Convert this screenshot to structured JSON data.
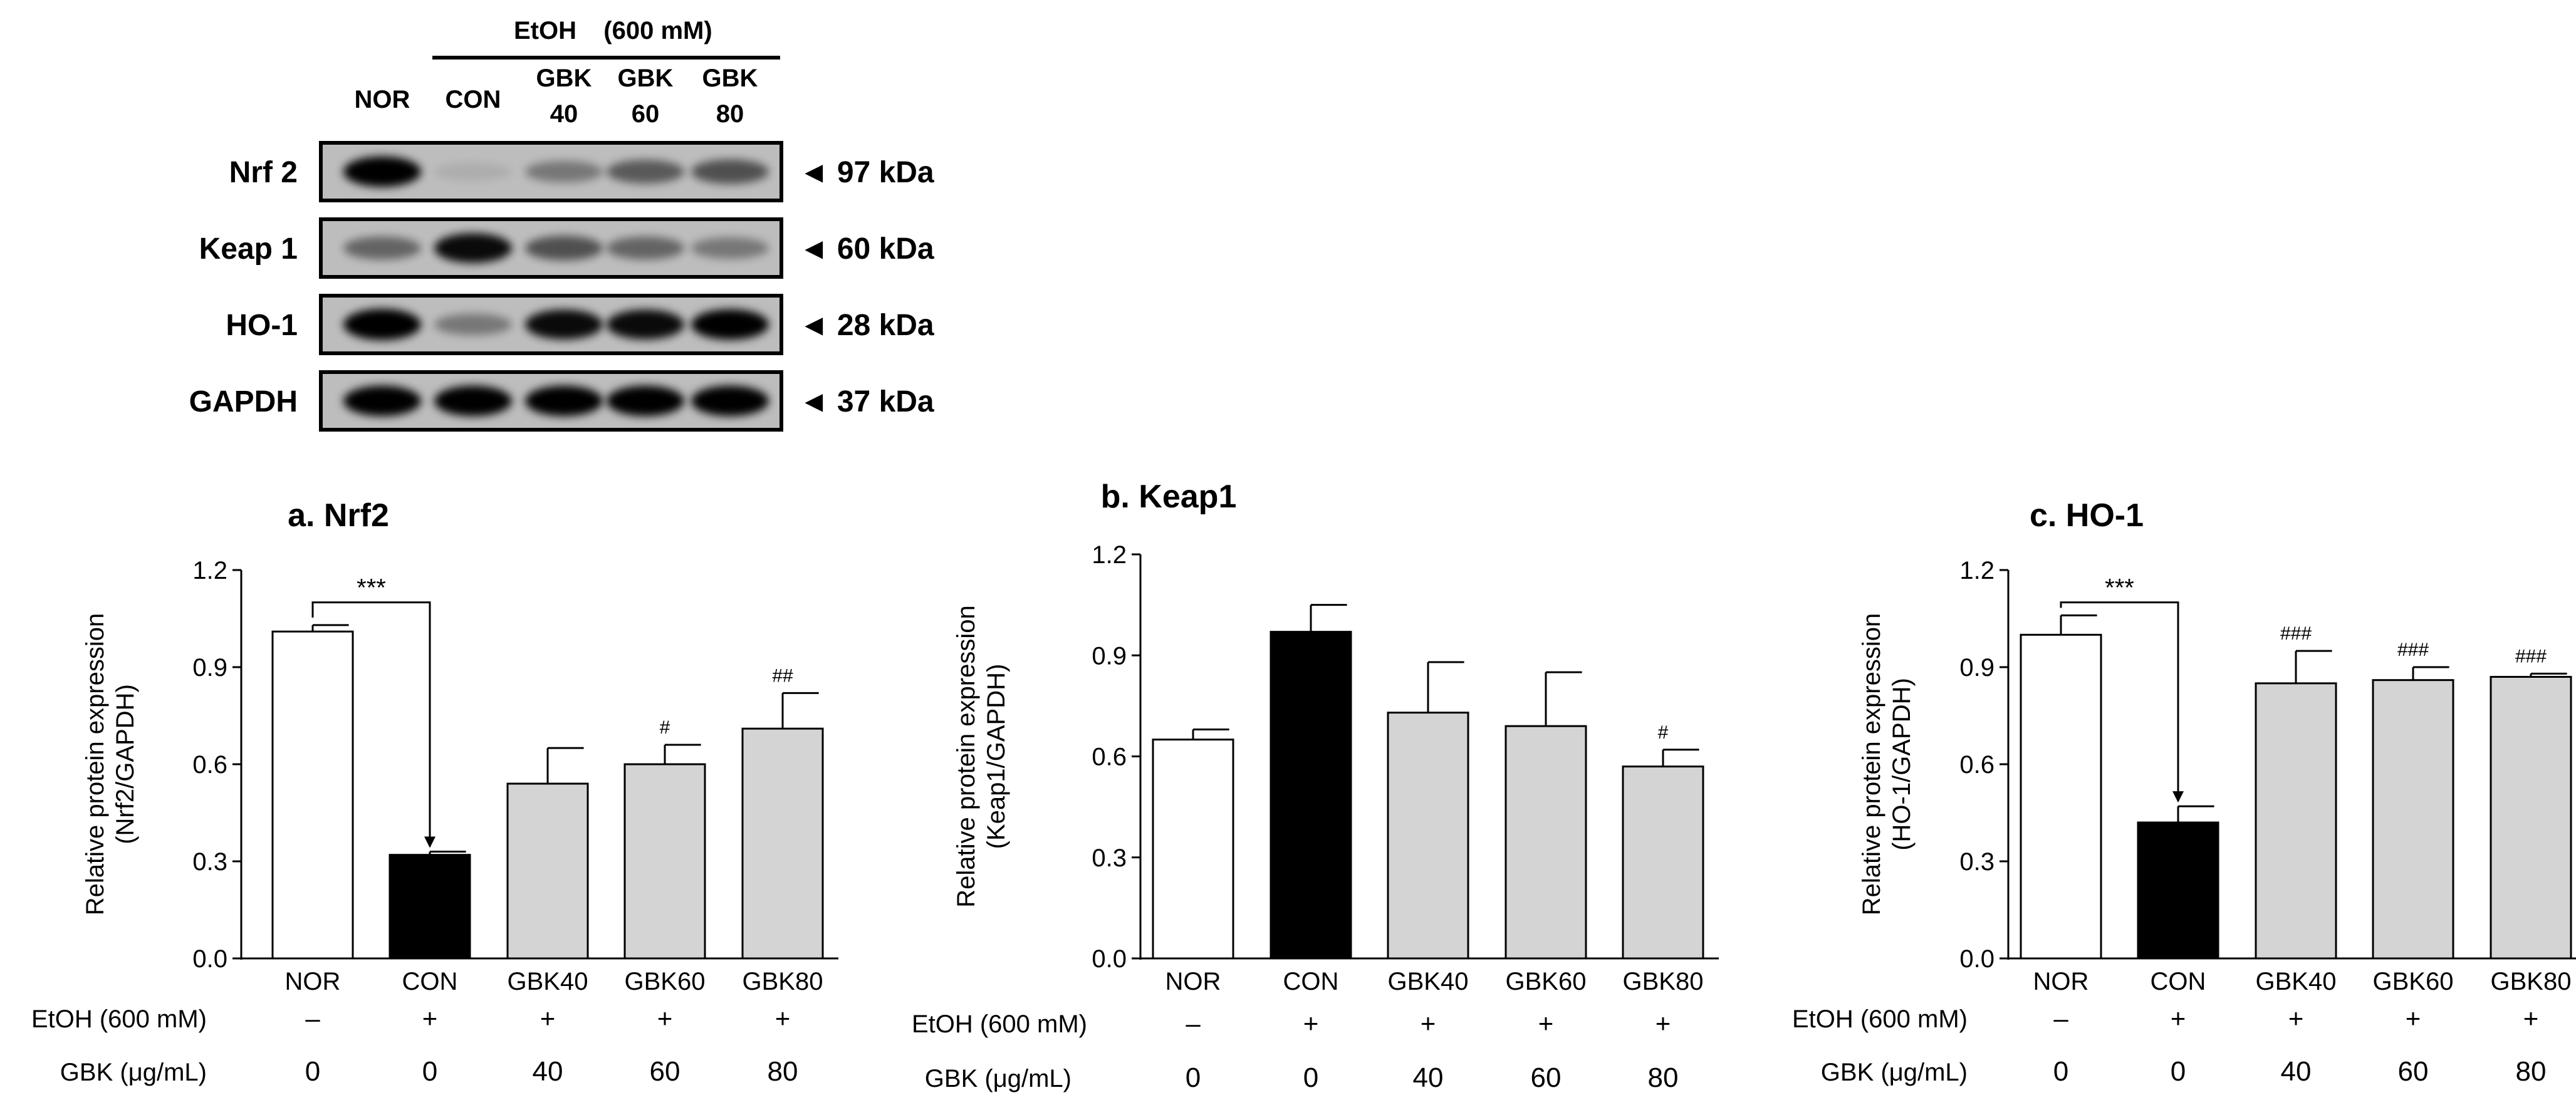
{
  "blot": {
    "header": {
      "treatment": "EtOH",
      "concentration": "(600 mM)"
    },
    "lanes": [
      {
        "line1": "NOR",
        "line2": ""
      },
      {
        "line1": "CON",
        "line2": ""
      },
      {
        "line1": "GBK",
        "line2": "40"
      },
      {
        "line1": "GBK",
        "line2": "60"
      },
      {
        "line1": "GBK",
        "line2": "80"
      }
    ],
    "rows": [
      {
        "name": "Nrf 2",
        "size": "◄ 97 kDa",
        "intensity": [
          0.95,
          0.08,
          0.35,
          0.5,
          0.55
        ]
      },
      {
        "name": "Keap 1",
        "size": "◄ 60 kDa",
        "intensity": [
          0.45,
          0.9,
          0.55,
          0.45,
          0.35
        ]
      },
      {
        "name": "HO-1",
        "size": "◄ 28 kDa",
        "intensity": [
          1.0,
          0.35,
          0.9,
          0.9,
          0.95
        ]
      },
      {
        "name": "GAPDH",
        "size": "◄ 37 kDa",
        "intensity": [
          0.95,
          0.95,
          0.95,
          0.95,
          0.95
        ]
      }
    ]
  },
  "footer": {
    "etoh_label": "EtOH  (600 mM)",
    "gbk_label": "GBK (μg/mL)",
    "etoh_values": [
      "–",
      "+",
      "+",
      "+",
      "+"
    ],
    "gbk_values": [
      "0",
      "0",
      "40",
      "60",
      "80"
    ]
  },
  "colors": {
    "white": "#ffffff",
    "black": "#000000",
    "gray": "#d4d4d4"
  },
  "chart_data": [
    {
      "type": "bar",
      "title": "a. Nrf2",
      "ylabel_line1": "Relative protein expression",
      "ylabel_line2": "(Nrf2/GAPDH)",
      "categories": [
        "NOR",
        "CON",
        "GBK40",
        "GBK60",
        "GBK80"
      ],
      "values": [
        1.01,
        0.32,
        0.54,
        0.6,
        0.71
      ],
      "errors": [
        0.02,
        0.01,
        0.11,
        0.06,
        0.11
      ],
      "fills": [
        "white",
        "black",
        "gray",
        "gray",
        "gray"
      ],
      "annotations": [
        "",
        "",
        "",
        "#",
        "##"
      ],
      "bracket_label": "***",
      "ylim": [
        0,
        1.2
      ],
      "yticks": [
        "0.0",
        "0.3",
        "0.6",
        "0.9",
        "1.2"
      ]
    },
    {
      "type": "bar",
      "title": "b. Keap1",
      "ylabel_line1": "Relative protein expression",
      "ylabel_line2": "(Keap1/GAPDH)",
      "categories": [
        "NOR",
        "CON",
        "GBK40",
        "GBK60",
        "GBK80"
      ],
      "values": [
        0.65,
        0.97,
        0.73,
        0.69,
        0.57
      ],
      "errors": [
        0.03,
        0.08,
        0.15,
        0.16,
        0.05
      ],
      "fills": [
        "white",
        "black",
        "gray",
        "gray",
        "gray"
      ],
      "annotations": [
        "",
        "",
        "",
        "",
        "#"
      ],
      "bracket_label": "",
      "ylim": [
        0,
        1.2
      ],
      "yticks": [
        "0.0",
        "0.3",
        "0.6",
        "0.9",
        "1.2"
      ]
    },
    {
      "type": "bar",
      "title": "c. HO-1",
      "ylabel_line1": "Relative protein expression",
      "ylabel_line2": "(HO-1/GAPDH)",
      "categories": [
        "NOR",
        "CON",
        "GBK40",
        "GBK60",
        "GBK80"
      ],
      "values": [
        1.0,
        0.42,
        0.85,
        0.86,
        0.87
      ],
      "errors": [
        0.06,
        0.05,
        0.1,
        0.04,
        0.01
      ],
      "fills": [
        "white",
        "black",
        "gray",
        "gray",
        "gray"
      ],
      "annotations": [
        "",
        "",
        "###",
        "###",
        "###"
      ],
      "bracket_label": "***",
      "ylim": [
        0,
        1.2
      ],
      "yticks": [
        "0.0",
        "0.3",
        "0.6",
        "0.9",
        "1.2"
      ]
    }
  ]
}
